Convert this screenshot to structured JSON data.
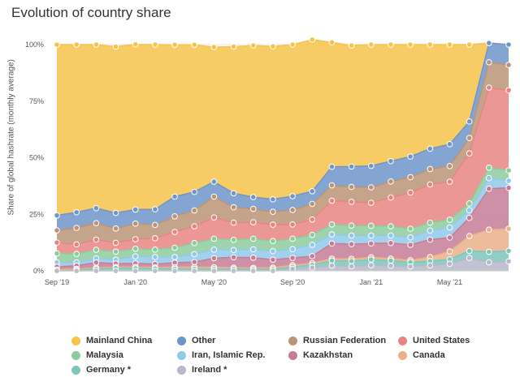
{
  "title": "Evolution of country share",
  "chart_data": {
    "type": "area",
    "stacking": "percent",
    "ylabel": "Share of global hashrate (monthly average)",
    "ylim": [
      0,
      100
    ],
    "y_ticks": [
      "0%",
      "25%",
      "50%",
      "75%",
      "100%"
    ],
    "x": [
      "2019-09",
      "2019-10",
      "2019-11",
      "2019-12",
      "2020-01",
      "2020-02",
      "2020-03",
      "2020-04",
      "2020-05",
      "2020-06",
      "2020-07",
      "2020-08",
      "2020-09",
      "2020-10",
      "2020-11",
      "2020-12",
      "2021-01",
      "2021-02",
      "2021-03",
      "2021-04",
      "2021-05",
      "2021-06",
      "2021-07",
      "2021-08"
    ],
    "x_ticks": [
      {
        "label": "Sep '19",
        "x": "2019-09"
      },
      {
        "label": "Jan '20",
        "x": "2020-01"
      },
      {
        "label": "May '20",
        "x": "2020-05"
      },
      {
        "label": "Sep '20",
        "x": "2020-09"
      },
      {
        "label": "Jan '21",
        "x": "2021-01"
      },
      {
        "label": "May '21",
        "x": "2021-05"
      }
    ],
    "grid": true,
    "legend_position": "bottom",
    "series": [
      {
        "name": "Mainland China",
        "color": "#f7c34a",
        "values": [
          75.5,
          74.1,
          72.3,
          73.5,
          73.0,
          72.8,
          67.1,
          65.0,
          59.5,
          64.8,
          67.0,
          67.6,
          67.0,
          67.0,
          55.0,
          53.5,
          53.6,
          51.5,
          49.5,
          46.0,
          44.0,
          34.0,
          0.0,
          0.0
        ]
      },
      {
        "name": "Other",
        "color": "#6f95c9",
        "values": [
          6.6,
          6.9,
          6.6,
          6.9,
          6.2,
          6.9,
          8.7,
          8.2,
          6.6,
          6.2,
          5.2,
          5.5,
          6.1,
          5.6,
          8.2,
          9.0,
          9.5,
          9.0,
          9.1,
          9.0,
          9.7,
          7.3,
          8.5,
          9.0
        ]
      },
      {
        "name": "Russian Federation",
        "color": "#bb9478",
        "values": [
          5.4,
          7.3,
          7.3,
          6.3,
          6.9,
          5.9,
          6.9,
          7.0,
          9.2,
          6.8,
          5.9,
          5.7,
          6.4,
          6.9,
          6.8,
          6.6,
          6.8,
          7.1,
          6.8,
          6.8,
          6.9,
          6.8,
          11.2,
          11.2
        ]
      },
      {
        "name": "United States",
        "color": "#e88583",
        "values": [
          4.8,
          4.2,
          4.5,
          3.9,
          4.2,
          5.0,
          7.0,
          7.4,
          9.4,
          7.6,
          7.3,
          7.2,
          6.3,
          6.8,
          10.5,
          10.5,
          10.2,
          12.7,
          16.0,
          16.9,
          16.8,
          22.1,
          35.4,
          35.4
        ]
      },
      {
        "name": "Malaysia",
        "color": "#8ecb9e",
        "values": [
          4.0,
          3.8,
          3.8,
          3.6,
          3.4,
          3.3,
          4.1,
          4.9,
          4.8,
          4.5,
          4.7,
          4.5,
          4.6,
          4.4,
          4.4,
          4.4,
          4.3,
          4.1,
          3.8,
          3.5,
          3.4,
          3.0,
          4.6,
          4.6
        ]
      },
      {
        "name": "Iran, Islamic Rep.",
        "color": "#92c9eb",
        "values": [
          1.9,
          1.4,
          1.8,
          1.7,
          3.1,
          3.1,
          2.5,
          3.5,
          3.8,
          3.2,
          3.7,
          3.8,
          3.9,
          5.0,
          4.0,
          3.8,
          3.5,
          3.3,
          3.3,
          4.0,
          4.5,
          3.4,
          4.7,
          3.1
        ]
      },
      {
        "name": "Kazakhstan",
        "color": "#c57c98",
        "values": [
          1.3,
          1.4,
          2.4,
          1.5,
          1.6,
          1.5,
          2.0,
          2.2,
          4.0,
          4.6,
          4.5,
          3.5,
          3.2,
          3.1,
          6.7,
          6.5,
          6.1,
          6.9,
          6.8,
          7.7,
          6.1,
          8.0,
          18.1,
          18.1
        ]
      },
      {
        "name": "Canada",
        "color": "#eab08a",
        "values": [
          0.5,
          0.5,
          0.5,
          0.5,
          0.6,
          0.5,
          0.7,
          0.8,
          0.8,
          0.6,
          0.6,
          0.7,
          0.8,
          0.8,
          0.9,
          1.0,
          1.0,
          0.9,
          0.9,
          1.8,
          3.5,
          6.6,
          9.8,
          9.8
        ]
      },
      {
        "name": "Germany *",
        "color": "#7dc6bb",
        "values": [
          0.0,
          0.4,
          0.8,
          1.2,
          1.1,
          1.0,
          0.9,
          0.9,
          0.8,
          0.8,
          0.7,
          0.7,
          0.8,
          1.2,
          2.2,
          2.3,
          2.5,
          2.3,
          1.9,
          1.9,
          2.0,
          3.1,
          4.6,
          4.6
        ]
      },
      {
        "name": "Ireland *",
        "color": "#b6b9c9",
        "values": [
          0.0,
          0.0,
          0.0,
          0.0,
          0.0,
          0.0,
          0.0,
          0.0,
          0.0,
          0.0,
          0.0,
          0.0,
          0.9,
          1.4,
          2.3,
          2.0,
          2.5,
          2.2,
          1.9,
          2.4,
          3.1,
          5.7,
          3.8,
          4.2
        ]
      }
    ]
  }
}
